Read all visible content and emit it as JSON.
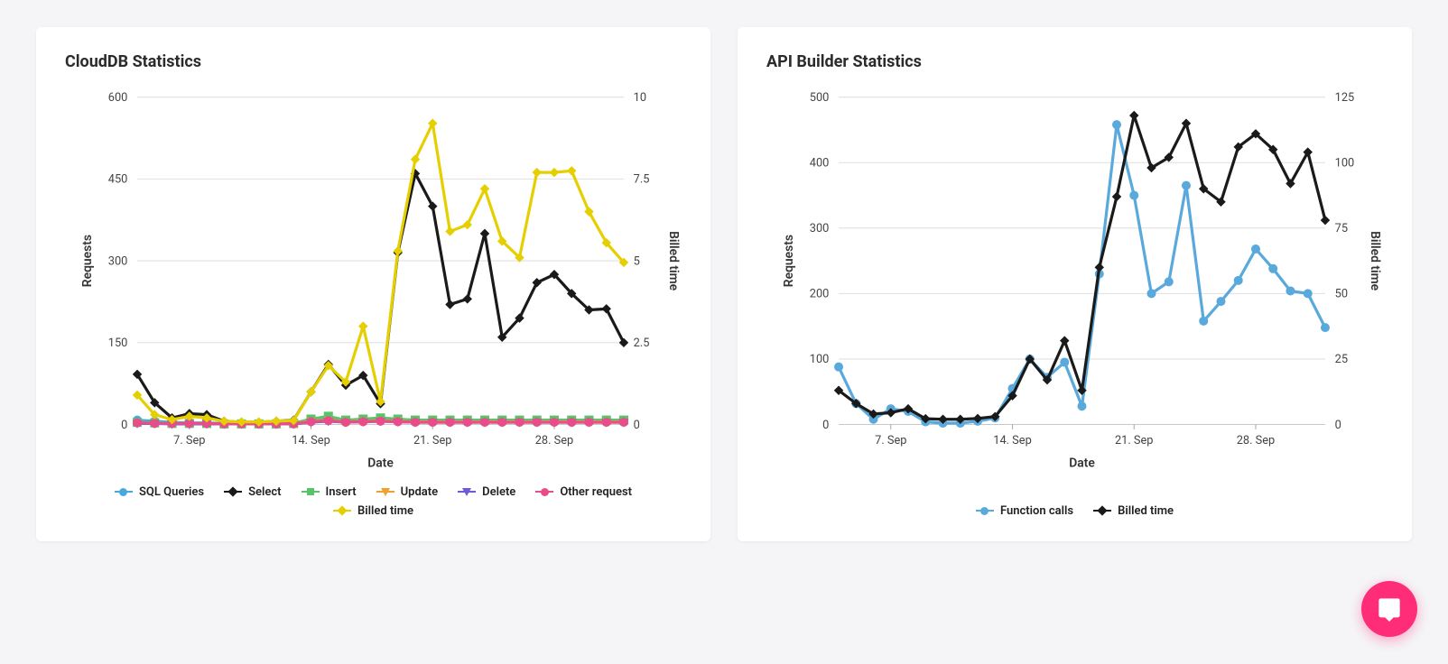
{
  "page_background": "#f5f5f7",
  "card_background": "#ffffff",
  "grid_color": "#e0e0e0",
  "fab_color": "#ff2d78",
  "charts": {
    "clouddb": {
      "title": "CloudDB Statistics",
      "x_axis_label": "Date",
      "y_left_label": "Requests",
      "y_right_label": "Billed time",
      "x_ticks": [
        "7. Sep",
        "14. Sep",
        "21. Sep",
        "28. Sep"
      ],
      "x_tick_indices": [
        3,
        10,
        17,
        24
      ],
      "x_count": 29,
      "y_left": {
        "min": 0,
        "max": 600,
        "step": 150,
        "ticks": [
          0,
          150,
          300,
          450,
          600
        ]
      },
      "y_right": {
        "min": 0,
        "max": 10,
        "step": 2.5,
        "ticks": [
          0,
          2.5,
          5,
          7.5,
          10
        ]
      },
      "line_width": 3,
      "marker_size": 4.2,
      "series": [
        {
          "name": "SQL Queries",
          "axis": "left",
          "color": "#4aa8e0",
          "marker": "circle",
          "values": [
            8,
            6,
            4,
            3,
            3,
            2,
            2,
            2,
            2,
            3,
            8,
            10,
            6,
            8,
            10,
            9,
            8,
            8,
            8,
            8,
            8,
            8,
            8,
            8,
            8,
            8,
            8,
            8,
            8
          ]
        },
        {
          "name": "Select",
          "axis": "left",
          "color": "#1a1a1a",
          "marker": "diamond",
          "values": [
            92,
            40,
            12,
            20,
            18,
            6,
            4,
            4,
            6,
            8,
            60,
            110,
            72,
            90,
            38,
            315,
            460,
            400,
            220,
            230,
            350,
            160,
            195,
            260,
            275,
            240,
            210,
            212,
            150
          ]
        },
        {
          "name": "Insert",
          "axis": "left",
          "color": "#59c36a",
          "marker": "square",
          "values": [
            4,
            3,
            2,
            2,
            2,
            1,
            1,
            1,
            1,
            2,
            10,
            15,
            8,
            10,
            12,
            10,
            8,
            8,
            8,
            8,
            8,
            8,
            8,
            8,
            8,
            8,
            8,
            8,
            8
          ]
        },
        {
          "name": "Update",
          "axis": "left",
          "color": "#f0a030",
          "marker": "tri-down",
          "values": [
            3,
            2,
            2,
            2,
            2,
            1,
            1,
            1,
            1,
            1,
            6,
            8,
            5,
            6,
            7,
            6,
            5,
            5,
            5,
            5,
            5,
            5,
            5,
            5,
            5,
            5,
            5,
            5,
            5
          ]
        },
        {
          "name": "Delete",
          "axis": "left",
          "color": "#6b5bd6",
          "marker": "tri-down",
          "values": [
            2,
            2,
            1,
            1,
            1,
            1,
            1,
            1,
            1,
            1,
            4,
            6,
            4,
            5,
            6,
            5,
            4,
            4,
            4,
            4,
            4,
            4,
            4,
            4,
            4,
            4,
            4,
            4,
            4
          ]
        },
        {
          "name": "Other request",
          "axis": "left",
          "color": "#e84d8a",
          "marker": "circle",
          "values": [
            3,
            2,
            2,
            2,
            2,
            1,
            1,
            1,
            1,
            1,
            5,
            7,
            4,
            5,
            6,
            5,
            4,
            4,
            4,
            4,
            4,
            4,
            4,
            4,
            4,
            4,
            4,
            4,
            4
          ]
        },
        {
          "name": "Billed time",
          "axis": "right",
          "color": "#e6cf00",
          "marker": "diamond",
          "values": [
            0.9,
            0.3,
            0.15,
            0.25,
            0.2,
            0.1,
            0.08,
            0.08,
            0.1,
            0.12,
            1.0,
            1.8,
            1.3,
            3.0,
            0.7,
            5.3,
            8.1,
            9.2,
            5.9,
            6.1,
            7.2,
            5.6,
            5.1,
            7.7,
            7.7,
            7.75,
            6.5,
            5.55,
            4.95
          ]
        }
      ]
    },
    "apibuilder": {
      "title": "API Builder Statistics",
      "x_axis_label": "Date",
      "y_left_label": "Requests",
      "y_right_label": "Billed time",
      "x_ticks": [
        "7. Sep",
        "14. Sep",
        "21. Sep",
        "28. Sep"
      ],
      "x_tick_indices": [
        3,
        10,
        17,
        24
      ],
      "x_count": 29,
      "y_left": {
        "min": 0,
        "max": 500,
        "step": 100,
        "ticks": [
          0,
          100,
          200,
          300,
          400,
          500
        ]
      },
      "y_right": {
        "min": 0,
        "max": 125,
        "step": 25,
        "ticks": [
          0,
          25,
          50,
          75,
          100,
          125
        ]
      },
      "line_width": 3,
      "marker_size": 4.2,
      "series": [
        {
          "name": "Function calls",
          "axis": "left",
          "color": "#5aa9dd",
          "marker": "circle",
          "values": [
            88,
            32,
            8,
            24,
            20,
            4,
            2,
            2,
            5,
            10,
            55,
            100,
            72,
            95,
            28,
            230,
            458,
            350,
            200,
            218,
            365,
            158,
            188,
            220,
            268,
            238,
            204,
            200,
            148
          ]
        },
        {
          "name": "Billed time",
          "axis": "right",
          "color": "#1a1a1a",
          "marker": "diamond",
          "values": [
            13,
            8,
            4,
            4.5,
            6,
            2.2,
            2,
            2,
            2.3,
            3,
            11,
            25,
            17,
            32,
            13,
            60,
            87,
            118,
            98,
            102,
            115,
            90,
            85,
            106,
            111,
            105,
            92,
            104,
            78
          ]
        }
      ]
    }
  },
  "legend_labels": {
    "clouddb": [
      "SQL Queries",
      "Select",
      "Insert",
      "Update",
      "Delete",
      "Other request",
      "Billed time"
    ],
    "apibuilder": [
      "Function calls",
      "Billed time"
    ]
  }
}
